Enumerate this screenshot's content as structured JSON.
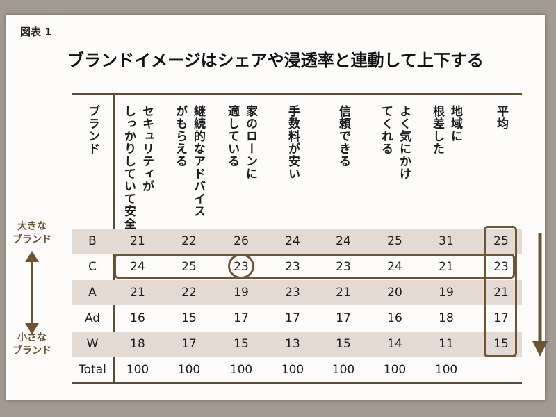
{
  "figure_label": "図表 1",
  "title": "ブランドイメージはシェアや浸透率と連動して上下する",
  "left_labels": {
    "large": "大きな\nブランド",
    "small": "小さな\nブランド"
  },
  "chart_data": {
    "type": "table",
    "brand_header": "ブランド",
    "columns": [
      "セキュリティが\nしっかりしていて安全",
      "継続的なアドバイス\nがもらえる",
      "家のローンに\n適している",
      "手数料が安い",
      "信頼できる",
      "よく気にかけ\nてくれる",
      "地域に\n根差した",
      "平均"
    ],
    "rows": [
      {
        "brand": "B",
        "values": [
          21,
          22,
          26,
          24,
          24,
          25,
          31,
          25
        ]
      },
      {
        "brand": "C",
        "values": [
          24,
          25,
          23,
          23,
          23,
          24,
          21,
          23
        ]
      },
      {
        "brand": "A",
        "values": [
          21,
          22,
          19,
          23,
          21,
          20,
          19,
          21
        ]
      },
      {
        "brand": "Ad",
        "values": [
          16,
          15,
          17,
          17,
          17,
          16,
          18,
          17
        ]
      },
      {
        "brand": "W",
        "values": [
          18,
          17,
          15,
          13,
          15,
          14,
          11,
          15
        ]
      },
      {
        "brand": "Total",
        "values": [
          100,
          100,
          100,
          100,
          100,
          100,
          100,
          null
        ]
      }
    ],
    "highlights": {
      "row_box_brand": "C",
      "circled_cell": {
        "brand": "C",
        "column_index": 2
      },
      "average_column_box": true
    },
    "accent_color": "#6d5437",
    "shade_color": "#e3dbd3"
  }
}
